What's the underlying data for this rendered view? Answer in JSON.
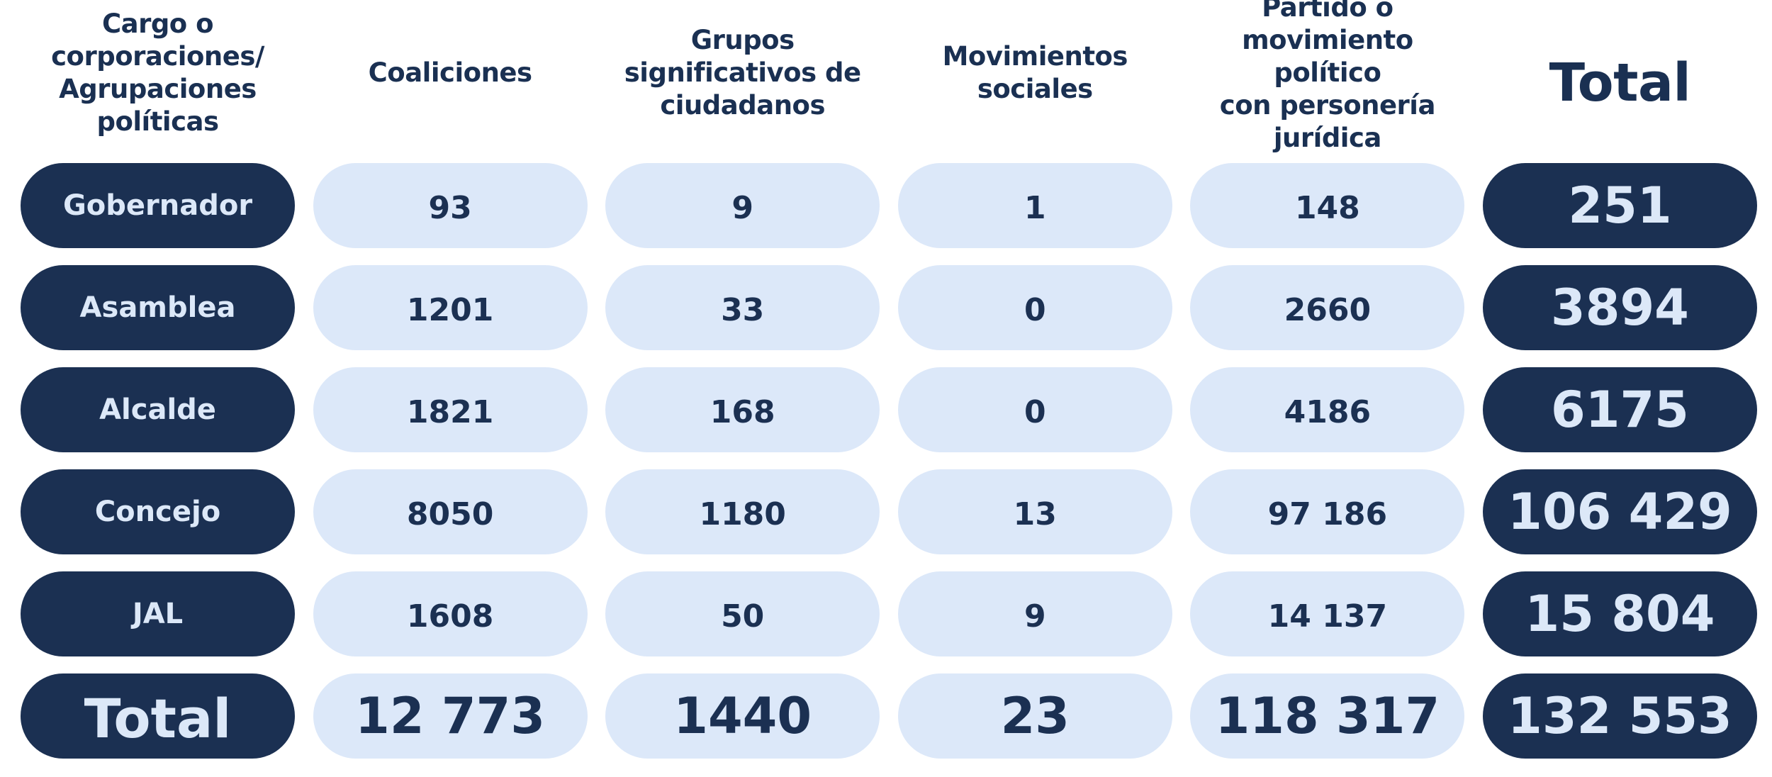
{
  "chart_data": {
    "type": "table",
    "columns": [
      "Cargo o\ncorporaciones/\nAgrupaciones\npolíticas",
      "Coaliciones",
      "Grupos\nsignificativos de\nciudadanos",
      "Movimientos\nsociales",
      "Partido o\nmovimiento político\ncon personería\njurídica",
      "Total"
    ],
    "rows": [
      [
        "Gobernador",
        "93",
        "9",
        "1",
        "148",
        "251"
      ],
      [
        "Asamblea",
        "1201",
        "33",
        "0",
        "2660",
        "3894"
      ],
      [
        "Alcalde",
        "1821",
        "168",
        "0",
        "4186",
        "6175"
      ],
      [
        "Concejo",
        "8050",
        "1180",
        "13",
        "97 186",
        "106 429"
      ],
      [
        "JAL",
        "1608",
        "50",
        "9",
        "14 137",
        "15 804"
      ],
      [
        "Total",
        "12 773",
        "1440",
        "23",
        "118 317",
        "132 553"
      ]
    ]
  },
  "colors": {
    "dark_navy": "#1b3052",
    "light_blue": "#dce8f9"
  }
}
